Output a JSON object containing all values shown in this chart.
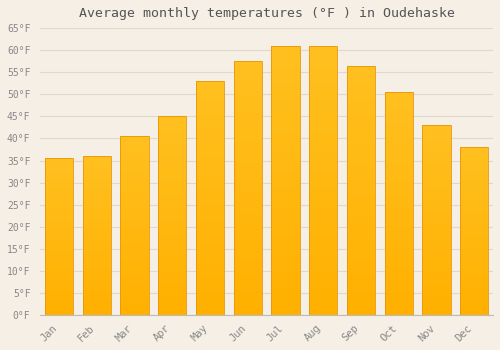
{
  "months": [
    "Jan",
    "Feb",
    "Mar",
    "Apr",
    "May",
    "Jun",
    "Jul",
    "Aug",
    "Sep",
    "Oct",
    "Nov",
    "Dec"
  ],
  "values": [
    35.5,
    36.0,
    40.5,
    45.0,
    53.0,
    57.5,
    61.0,
    61.0,
    56.5,
    50.5,
    43.0,
    38.0
  ],
  "bar_color_top": "#FFC020",
  "bar_color_bottom": "#FFB000",
  "bar_edge_color": "#E8960A",
  "background_color": "#F5EFE6",
  "grid_color": "#E0D8CC",
  "title": "Average monthly temperatures (°F ) in Oudehaske",
  "title_fontsize": 9.5,
  "tick_label_color": "#888888",
  "title_color": "#555555",
  "ylim": [
    0,
    65
  ],
  "yticks": [
    0,
    5,
    10,
    15,
    20,
    25,
    30,
    35,
    40,
    45,
    50,
    55,
    60,
    65
  ],
  "ylabel_format": "°F"
}
